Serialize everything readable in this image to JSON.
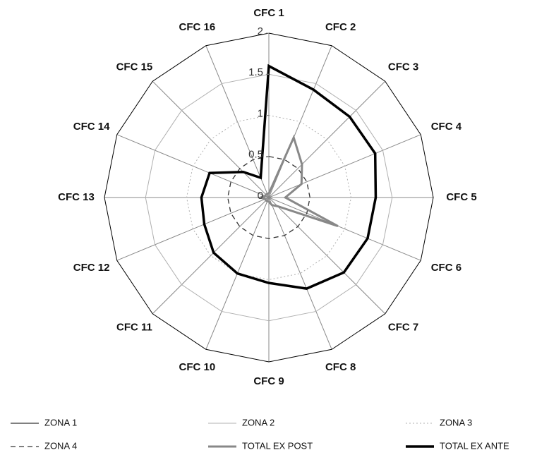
{
  "chart_data": {
    "type": "radar",
    "categories": [
      "CFC 1",
      "CFC 2",
      "CFC 3",
      "CFC 4",
      "CFC 5",
      "CFC 6",
      "CFC 7",
      "CFC 8",
      "CFC 9",
      "CFC 10",
      "CFC 11",
      "CFC 12",
      "CFC 13",
      "CFC 14",
      "CFC 15",
      "CFC 16"
    ],
    "rlim": [
      0,
      2
    ],
    "rticks": [
      0,
      0.5,
      1,
      1.5,
      2
    ],
    "series": [
      {
        "name": "ZONA 1",
        "color": "#000000",
        "line_style": "solid",
        "values": [
          2,
          2,
          2,
          2,
          2,
          2,
          2,
          2,
          2,
          2,
          2,
          2,
          2,
          2,
          2,
          2
        ]
      },
      {
        "name": "ZONA 2",
        "color": "#b0b0b0",
        "line_style": "solid",
        "values": [
          1.5,
          1.5,
          1.5,
          1.5,
          1.5,
          1.5,
          1.5,
          1.5,
          1.5,
          1.5,
          1.5,
          1.5,
          1.5,
          1.5,
          1.5,
          1.5
        ]
      },
      {
        "name": "ZONA 3",
        "color": "#b0b0b0",
        "line_style": "dotted",
        "values": [
          1,
          1,
          1,
          1,
          1,
          1,
          1,
          1,
          1,
          1,
          1,
          1,
          1,
          1,
          1,
          1
        ]
      },
      {
        "name": "ZONA 4",
        "color": "#333333",
        "line_style": "dashed",
        "values": [
          0.5,
          0.5,
          0.5,
          0.5,
          0.5,
          0.5,
          0.5,
          0.5,
          0.5,
          0.5,
          0.5,
          0.5,
          0.5,
          0.5,
          0.5,
          0.5
        ]
      },
      {
        "name": "TOTAL EX POST",
        "color": "#888888",
        "line_style": "solid",
        "values": [
          0.05,
          0.79,
          0.57,
          0.43,
          0.2,
          0.91,
          0.15,
          0.1,
          0.05,
          0.05,
          0.05,
          0.05,
          0.1,
          0.05,
          0.05,
          0.05
        ]
      },
      {
        "name": "TOTAL EX ANTE",
        "color": "#000000",
        "line_style": "solid",
        "values": [
          1.6,
          1.42,
          1.39,
          1.4,
          1.3,
          1.3,
          1.29,
          1.2,
          1.04,
          1.0,
          0.95,
          0.85,
          0.82,
          0.78,
          0.44,
          0.26
        ]
      }
    ]
  }
}
